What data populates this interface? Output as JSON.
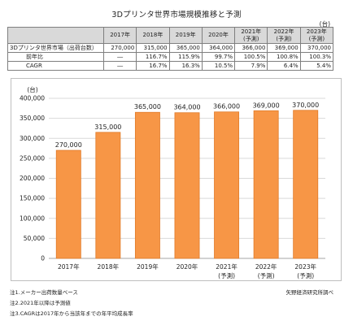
{
  "title": "3Dプリンタ世界市場規模推移と予測",
  "table": {
    "unit": "(台)",
    "header_years": [
      "2017年",
      "2018年",
      "2019年",
      "2020年",
      "2021年",
      "2022年",
      "2023年"
    ],
    "header_notes": [
      "",
      "",
      "",
      "",
      "(予測)",
      "(予測)",
      "(予測)"
    ],
    "rows": [
      {
        "label": "3Dプリンタ世界市場（出荷台数）",
        "values": [
          "270,000",
          "315,000",
          "365,000",
          "364,000",
          "366,000",
          "369,000",
          "370,000"
        ]
      },
      {
        "label": "前年比",
        "values": [
          "―",
          "116.7%",
          "115.9%",
          "99.7%",
          "100.5%",
          "100.8%",
          "100.3%"
        ]
      },
      {
        "label": "CAGR",
        "values": [
          "―",
          "16.7%",
          "16.3%",
          "10.5%",
          "7.9%",
          "6.4%",
          "5.4%"
        ]
      }
    ]
  },
  "chart_data": {
    "type": "bar",
    "unit_label": "(台)",
    "categories": [
      "2017年",
      "2018年",
      "2019年",
      "2020年",
      "2021年",
      "2022年",
      "2023年"
    ],
    "category_notes": [
      "",
      "",
      "",
      "",
      "(予測)",
      "(予測)",
      "(予測)"
    ],
    "values": [
      270000,
      315000,
      365000,
      364000,
      366000,
      369000,
      370000
    ],
    "data_labels": [
      "270,000",
      "315,000",
      "365,000",
      "364,000",
      "366,000",
      "369,000",
      "370,000"
    ],
    "ylim": [
      0,
      400000
    ],
    "yticks": [
      0,
      50000,
      100000,
      150000,
      200000,
      250000,
      300000,
      350000,
      400000
    ],
    "ytick_labels": [
      "0",
      "50,000",
      "100,000",
      "150,000",
      "200,000",
      "250,000",
      "300,000",
      "350,000",
      "400,000"
    ],
    "grid": true,
    "bar_color": "#f79646",
    "bar_edge_color": "#e07b2a"
  },
  "notes": [
    "注1.メーカー出荷数量ベース",
    "注2.2021年以降は予測値",
    "注3.CAGRは2017年から当該年までの年平均成長率"
  ],
  "source": "矢野経済研究所調べ"
}
